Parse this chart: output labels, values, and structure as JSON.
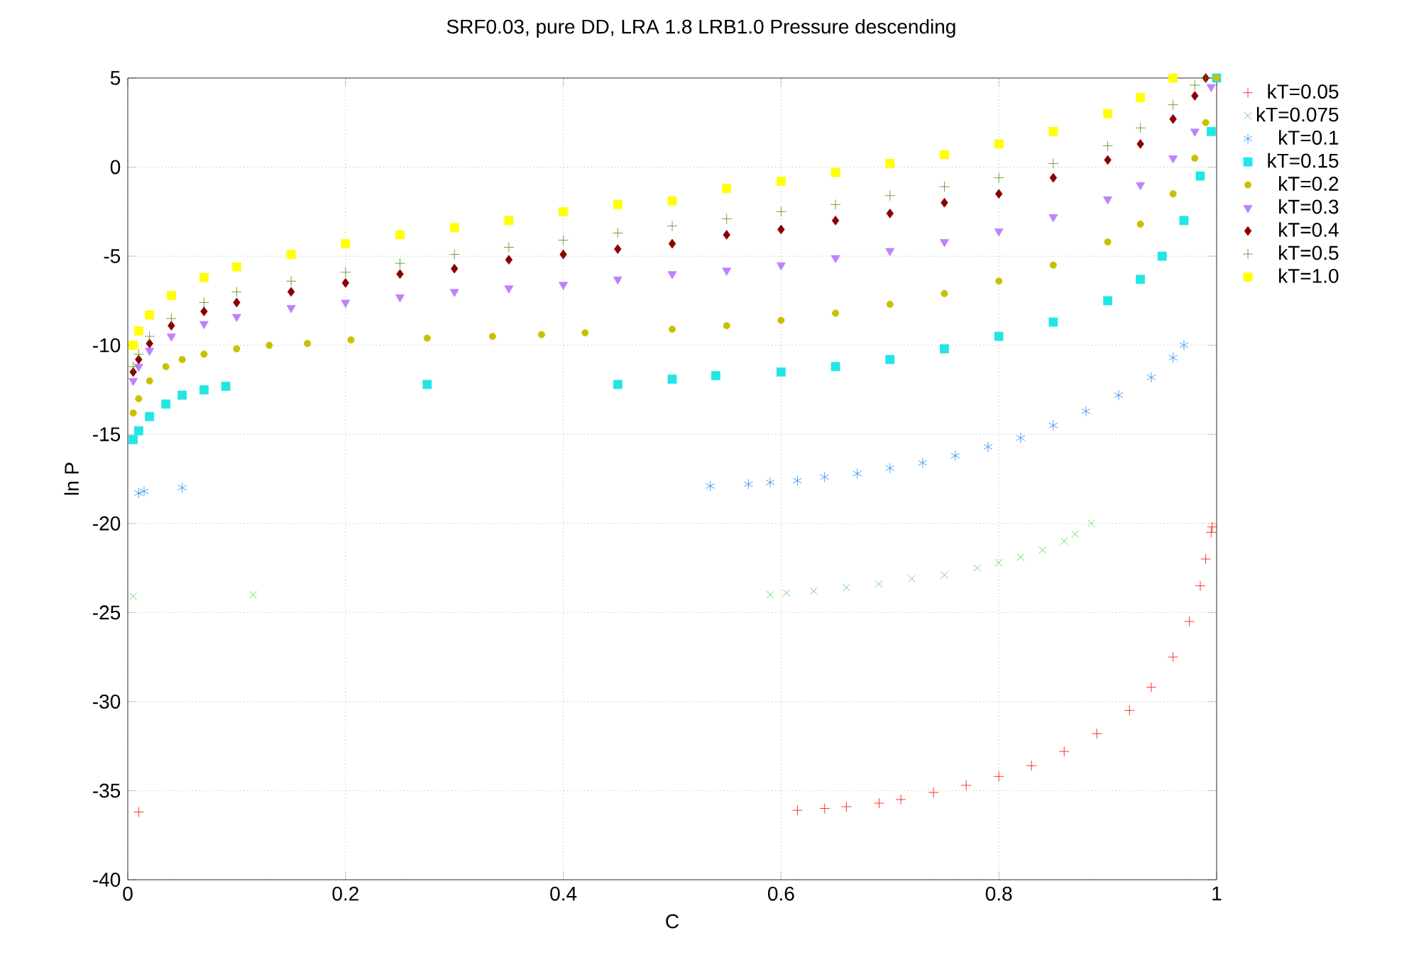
{
  "chart_data": {
    "type": "scatter",
    "title": "SRF0.03, pure DD, LRA 1.8 LRB1.0 Pressure descending",
    "xlabel": "C",
    "ylabel": "ln P",
    "xlim": [
      0,
      1
    ],
    "ylim": [
      -40,
      5
    ],
    "xticks": [
      0,
      0.2,
      0.4,
      0.6,
      0.8,
      1
    ],
    "yticks": [
      -40,
      -35,
      -30,
      -25,
      -20,
      -15,
      -10,
      -5,
      0,
      5
    ],
    "grid": true,
    "legend": "top right",
    "series": [
      {
        "name": "kT=0.05",
        "color": "#ff0000",
        "marker": "cross",
        "x": [
          0.01,
          0.615,
          0.64,
          0.66,
          0.69,
          0.71,
          0.74,
          0.77,
          0.8,
          0.83,
          0.86,
          0.89,
          0.92,
          0.94,
          0.96,
          0.975,
          0.985,
          0.99,
          0.995,
          0.996
        ],
        "values": [
          -36.2,
          -36.1,
          -36.0,
          -35.9,
          -35.7,
          -35.5,
          -35.1,
          -34.7,
          -34.2,
          -33.6,
          -32.8,
          -31.8,
          -30.5,
          -29.2,
          -27.5,
          -25.5,
          -23.5,
          -22,
          -20.5,
          -20.2
        ]
      },
      {
        "name": "kT=0.075",
        "color": "#44cc44",
        "marker": "cross",
        "x": [
          0.005,
          0.115,
          0.59,
          0.605,
          0.63,
          0.66,
          0.69,
          0.72,
          0.75,
          0.78,
          0.8,
          0.82,
          0.84,
          0.86,
          0.87,
          0.885
        ],
        "values": [
          -24.1,
          -24.0,
          -24.0,
          -23.9,
          -23.8,
          -23.6,
          -23.4,
          -23.1,
          -22.9,
          -22.5,
          -22.2,
          -21.9,
          -21.5,
          -21.0,
          -20.6,
          -20.0
        ]
      },
      {
        "name": "kT=0.1",
        "color": "#1e88f0",
        "marker": "cross",
        "x": [
          0.01,
          0.015,
          0.05,
          0.535,
          0.57,
          0.59,
          0.615,
          0.64,
          0.67,
          0.7,
          0.73,
          0.76,
          0.79,
          0.82,
          0.85,
          0.88,
          0.91,
          0.94,
          0.96,
          0.97
        ],
        "values": [
          -18.3,
          -18.2,
          -18.0,
          -17.9,
          -17.8,
          -17.7,
          -17.6,
          -17.4,
          -17.2,
          -16.9,
          -16.6,
          -16.2,
          -15.7,
          -15.2,
          -14.5,
          -13.7,
          -12.8,
          -11.8,
          -10.7,
          -10.0
        ]
      },
      {
        "name": "kT=0.15",
        "color": "#22e6e6",
        "marker": "square",
        "x": [
          0.005,
          0.01,
          0.02,
          0.035,
          0.05,
          0.07,
          0.09,
          0.275,
          0.45,
          0.5,
          0.54,
          0.6,
          0.65,
          0.7,
          0.75,
          0.8,
          0.85,
          0.9,
          0.93,
          0.95,
          0.97,
          0.985,
          0.995,
          1.0
        ],
        "values": [
          -15.3,
          -14.8,
          -14.0,
          -13.3,
          -12.8,
          -12.5,
          -12.3,
          -12.2,
          -12.2,
          -11.9,
          -11.7,
          -11.5,
          -11.2,
          -10.8,
          -10.2,
          -9.5,
          -8.7,
          -7.5,
          -6.3,
          -5,
          -3,
          -0.5,
          2,
          5
        ]
      },
      {
        "name": "kT=0.2",
        "color": "#c8c000",
        "marker": "circle",
        "x": [
          0.005,
          0.01,
          0.02,
          0.035,
          0.05,
          0.07,
          0.1,
          0.13,
          0.165,
          0.205,
          0.275,
          0.335,
          0.38,
          0.42,
          0.5,
          0.55,
          0.6,
          0.65,
          0.7,
          0.75,
          0.8,
          0.85,
          0.9,
          0.93,
          0.96,
          0.98,
          0.99,
          1.0
        ],
        "values": [
          -13.8,
          -13.0,
          -12.0,
          -11.2,
          -10.8,
          -10.5,
          -10.2,
          -10.0,
          -9.9,
          -9.7,
          -9.6,
          -9.5,
          -9.4,
          -9.3,
          -9.1,
          -8.9,
          -8.6,
          -8.2,
          -7.7,
          -7.1,
          -6.4,
          -5.5,
          -4.2,
          -3.2,
          -1.5,
          0.5,
          2.5,
          5
        ]
      },
      {
        "name": "kT=0.3",
        "color": "#c080ff",
        "marker": "triangle",
        "x": [
          0.005,
          0.01,
          0.02,
          0.04,
          0.07,
          0.1,
          0.15,
          0.2,
          0.25,
          0.3,
          0.35,
          0.4,
          0.45,
          0.5,
          0.55,
          0.6,
          0.65,
          0.7,
          0.75,
          0.8,
          0.85,
          0.9,
          0.93,
          0.96,
          0.98,
          0.995
        ],
        "values": [
          -12.0,
          -11.2,
          -10.3,
          -9.5,
          -8.8,
          -8.4,
          -7.9,
          -7.6,
          -7.3,
          -7.0,
          -6.8,
          -6.6,
          -6.3,
          -6.0,
          -5.8,
          -5.5,
          -5.1,
          -4.7,
          -4.2,
          -3.6,
          -2.8,
          -1.8,
          -1.0,
          0.5,
          2,
          4.5
        ]
      },
      {
        "name": "kT=0.4",
        "color": "#8b0000",
        "marker": "diamond",
        "x": [
          0.005,
          0.01,
          0.02,
          0.04,
          0.07,
          0.1,
          0.15,
          0.2,
          0.25,
          0.3,
          0.35,
          0.4,
          0.45,
          0.5,
          0.55,
          0.6,
          0.65,
          0.7,
          0.75,
          0.8,
          0.85,
          0.9,
          0.93,
          0.96,
          0.98,
          0.99
        ],
        "values": [
          -11.5,
          -10.8,
          -9.9,
          -8.9,
          -8.1,
          -7.6,
          -7.0,
          -6.5,
          -6.0,
          -5.7,
          -5.2,
          -4.9,
          -4.6,
          -4.3,
          -3.8,
          -3.5,
          -3.0,
          -2.6,
          -2.0,
          -1.5,
          -0.6,
          0.4,
          1.3,
          2.7,
          4,
          5
        ]
      },
      {
        "name": "kT=0.5",
        "color": "#4a8a10",
        "marker": "cross",
        "x": [
          0.005,
          0.01,
          0.02,
          0.04,
          0.07,
          0.1,
          0.15,
          0.2,
          0.25,
          0.3,
          0.35,
          0.4,
          0.45,
          0.5,
          0.55,
          0.6,
          0.65,
          0.7,
          0.75,
          0.8,
          0.85,
          0.9,
          0.93,
          0.96,
          0.98,
          0.99
        ],
        "values": [
          -11.2,
          -10.5,
          -9.5,
          -8.5,
          -7.6,
          -7.0,
          -6.4,
          -5.9,
          -5.4,
          -4.9,
          -4.5,
          -4.1,
          -3.7,
          -3.3,
          -2.9,
          -2.5,
          -2.1,
          -1.6,
          -1.1,
          -0.6,
          0.2,
          1.2,
          2.2,
          3.5,
          4.6,
          5
        ]
      },
      {
        "name": "kT=1.0",
        "color": "#ffff00",
        "marker": "square",
        "x": [
          0.005,
          0.01,
          0.02,
          0.04,
          0.07,
          0.1,
          0.15,
          0.2,
          0.25,
          0.3,
          0.35,
          0.4,
          0.45,
          0.5,
          0.55,
          0.6,
          0.65,
          0.7,
          0.75,
          0.8,
          0.85,
          0.9,
          0.93,
          0.96
        ],
        "values": [
          -10.0,
          -9.2,
          -8.3,
          -7.2,
          -6.2,
          -5.6,
          -4.9,
          -4.3,
          -3.8,
          -3.4,
          -3.0,
          -2.5,
          -2.1,
          -1.9,
          -1.2,
          -0.8,
          -0.3,
          0.2,
          0.7,
          1.3,
          2.0,
          3.0,
          3.9,
          5
        ]
      }
    ]
  }
}
